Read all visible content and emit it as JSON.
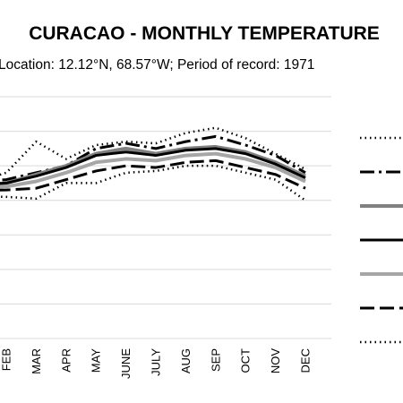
{
  "chart_data": {
    "type": "line",
    "title": "CURACAO - MONTHLY TEMPERATURE",
    "subtitle": "Location: 12.12°N, 68.57°W; Period of record: 1971",
    "categories": [
      "FEB",
      "MAR",
      "APR",
      "MAY",
      "JUNE",
      "JULY",
      "AUG",
      "SEP",
      "OCT",
      "NOV",
      "DEC"
    ],
    "ylim": [
      0,
      7
    ],
    "grid": true,
    "legend_position": "right",
    "series": [
      {
        "key": "s1",
        "color": "#000000",
        "dash": "1.5,4",
        "width": 2.5,
        "values": [
          4.8,
          5.7,
          5.2,
          5.6,
          5.7,
          5.65,
          5.95,
          6.1,
          5.8,
          5.35,
          4.9
        ]
      },
      {
        "key": "s2",
        "color": "#000000",
        "dash": "16,5,3,5",
        "width": 3,
        "values": [
          4.6,
          4.8,
          5.0,
          5.5,
          5.65,
          5.5,
          5.7,
          5.85,
          5.6,
          5.3,
          4.8
        ]
      },
      {
        "key": "s3",
        "color": "#808080",
        "dash": "",
        "width": 4,
        "values": [
          4.5,
          4.75,
          5.0,
          5.35,
          5.5,
          5.35,
          5.5,
          5.55,
          5.4,
          5.1,
          4.7
        ]
      },
      {
        "key": "s4",
        "color": "#000000",
        "dash": "",
        "width": 3,
        "values": [
          4.5,
          4.7,
          4.95,
          5.3,
          5.4,
          5.3,
          5.45,
          5.5,
          5.35,
          5.05,
          4.65
        ]
      },
      {
        "key": "s5",
        "color": "#a6a6a6",
        "dash": "",
        "width": 4,
        "values": [
          4.4,
          4.55,
          4.8,
          5.1,
          5.2,
          5.15,
          5.3,
          5.35,
          5.2,
          4.95,
          4.55
        ]
      },
      {
        "key": "s6",
        "color": "#000000",
        "dash": "16,6",
        "width": 3,
        "values": [
          4.3,
          4.35,
          4.6,
          4.85,
          5.0,
          4.95,
          5.1,
          5.15,
          4.95,
          4.75,
          4.35
        ]
      },
      {
        "key": "s7",
        "color": "#000000",
        "dash": "1.5,4",
        "width": 2.5,
        "values": [
          4.1,
          4.05,
          4.5,
          4.5,
          4.8,
          4.85,
          5.0,
          5.0,
          4.8,
          4.6,
          4.0
        ]
      }
    ]
  }
}
